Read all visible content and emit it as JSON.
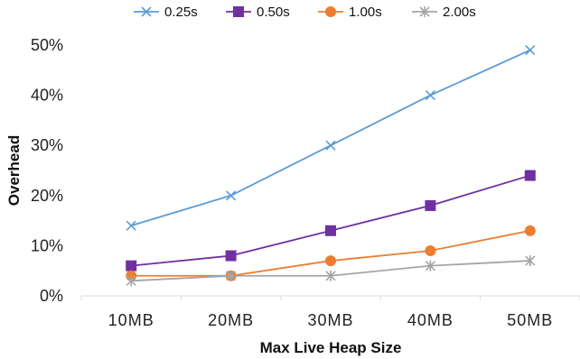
{
  "chart_data": {
    "type": "line",
    "title": "",
    "xlabel": "Max Live Heap Size",
    "ylabel": "Overhead",
    "categories": [
      "10MB",
      "20MB",
      "30MB",
      "40MB",
      "50MB"
    ],
    "y_ticks": [
      "0%",
      "10%",
      "20%",
      "30%",
      "40%",
      "50%"
    ],
    "ylim": [
      0,
      50
    ],
    "y_unit": "%",
    "grid": false,
    "legend_position": "top",
    "series": [
      {
        "name": "0.25s",
        "values": [
          14,
          20,
          30,
          40,
          49
        ],
        "color": "#5b9bd5",
        "marker": "x"
      },
      {
        "name": "0.50s",
        "values": [
          6,
          8,
          13,
          18,
          24
        ],
        "color": "#7030a0",
        "marker": "square"
      },
      {
        "name": "1.00s",
        "values": [
          4,
          4,
          7,
          9,
          13
        ],
        "color": "#ed7d31",
        "marker": "circle"
      },
      {
        "name": "2.00s",
        "values": [
          3,
          4,
          4,
          6,
          7
        ],
        "color": "#a5a5a5",
        "marker": "star"
      }
    ]
  }
}
